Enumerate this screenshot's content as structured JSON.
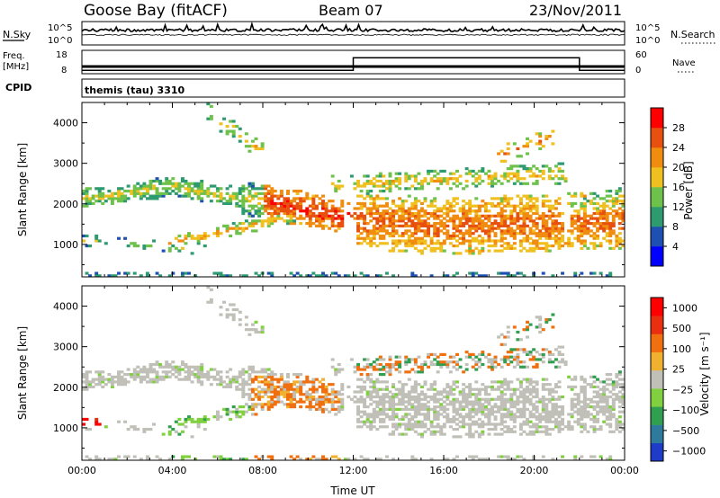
{
  "header": {
    "station": "Goose Bay (fitACF)",
    "beam": "Beam 07",
    "date": "23/Nov/2011"
  },
  "noise_panel": {
    "left_label": "N.Sky",
    "right_label": "N.Search",
    "left_ticks": [
      "10^5",
      "10^0"
    ],
    "right_ticks": [
      "10^5",
      "10^0"
    ]
  },
  "freq_panel": {
    "left_label_1": "Freq.",
    "left_label_2": "[MHz]",
    "right_label": "Nave",
    "left_ticks": [
      "18",
      "8"
    ],
    "right_ticks": [
      "60",
      "0"
    ],
    "nave_steps": [
      {
        "start_hour": 0,
        "end_hour": 12,
        "nave": 7
      },
      {
        "start_hour": 12,
        "end_hour": 22,
        "nave": 42
      },
      {
        "start_hour": 22,
        "end_hour": 24,
        "nave": 7
      }
    ]
  },
  "cpid_panel": {
    "label": "CPID",
    "value": "themis (tau) 3310"
  },
  "chart_data": [
    {
      "type": "heatmap",
      "ylabel": "Slant Range [km]",
      "xlabel": "",
      "xlim": [
        0,
        24
      ],
      "ylim": [
        200,
        4500
      ],
      "yticks": [
        "1000",
        "2000",
        "3000",
        "4000"
      ],
      "colorbar": {
        "label": "Power [dB]",
        "range": [
          0,
          32
        ],
        "ticks": [
          "4",
          "8",
          "12",
          "16",
          "20",
          "24",
          "28"
        ],
        "colors": [
          "#0000ff",
          "#1e50b4",
          "#2e9a70",
          "#6ec24c",
          "#f0c020",
          "#f08c10",
          "#e85010",
          "#ff0000"
        ]
      }
    },
    {
      "type": "heatmap",
      "ylabel": "Slant Range [km]",
      "xlabel": "Time UT",
      "xlim": [
        0,
        24
      ],
      "ylim": [
        200,
        4500
      ],
      "xticks": [
        "00:00",
        "04:00",
        "08:00",
        "12:00",
        "16:00",
        "20:00",
        "00:00"
      ],
      "yticks": [
        "1000",
        "2000",
        "3000",
        "4000"
      ],
      "colorbar": {
        "label": "Velocity [m s⁻¹]",
        "ticks": [
          "1000",
          "500",
          "100",
          "25",
          "−25",
          "−100",
          "−500",
          "−1000"
        ],
        "colors": [
          "#1e3cc8",
          "#2e7a9c",
          "#30a050",
          "#80d040",
          "#c0c0b8",
          "#f0b030",
          "#f07010",
          "#e83010",
          "#ff0000"
        ]
      }
    }
  ]
}
